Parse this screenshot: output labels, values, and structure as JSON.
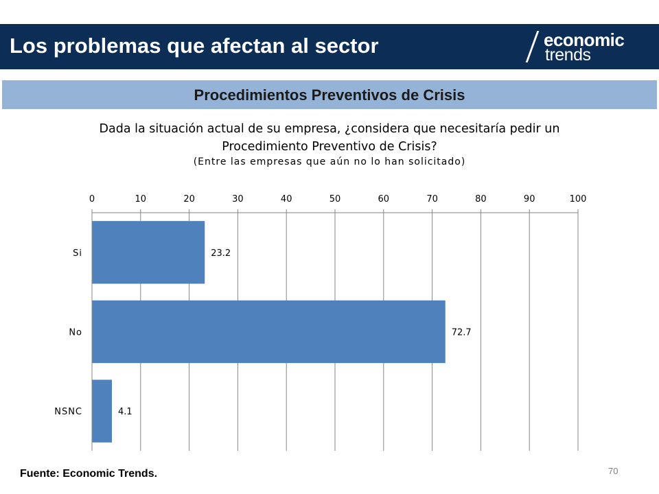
{
  "header": {
    "title": "Los problemas que afectan al sector",
    "logo_line1": "economic",
    "logo_line2": "trends"
  },
  "section_title": "Procedimientos Preventivos de Crisis",
  "question": {
    "line1": "Dada la situación actual de su empresa, ¿considera que necesitaría pedir un",
    "line2": "Procedimiento Preventivo de Crisis?",
    "line3": "(Entre las empresas que aún no lo han solicitado)"
  },
  "chart_data": {
    "type": "bar",
    "orientation": "horizontal",
    "categories": [
      "Si",
      "No",
      "NSNC"
    ],
    "values": [
      23.2,
      72.7,
      4.1
    ],
    "data_labels": [
      "23.2",
      "72.7",
      "4.1"
    ],
    "xlim": [
      0,
      100
    ],
    "x_ticks": [
      0,
      10,
      20,
      30,
      40,
      50,
      60,
      70,
      80,
      90,
      100
    ],
    "x_axis_position": "top",
    "grid": true,
    "bar_color": "#4f81bd"
  },
  "footer": {
    "source": "Fuente: Economic Trends.",
    "page_number": "70"
  }
}
